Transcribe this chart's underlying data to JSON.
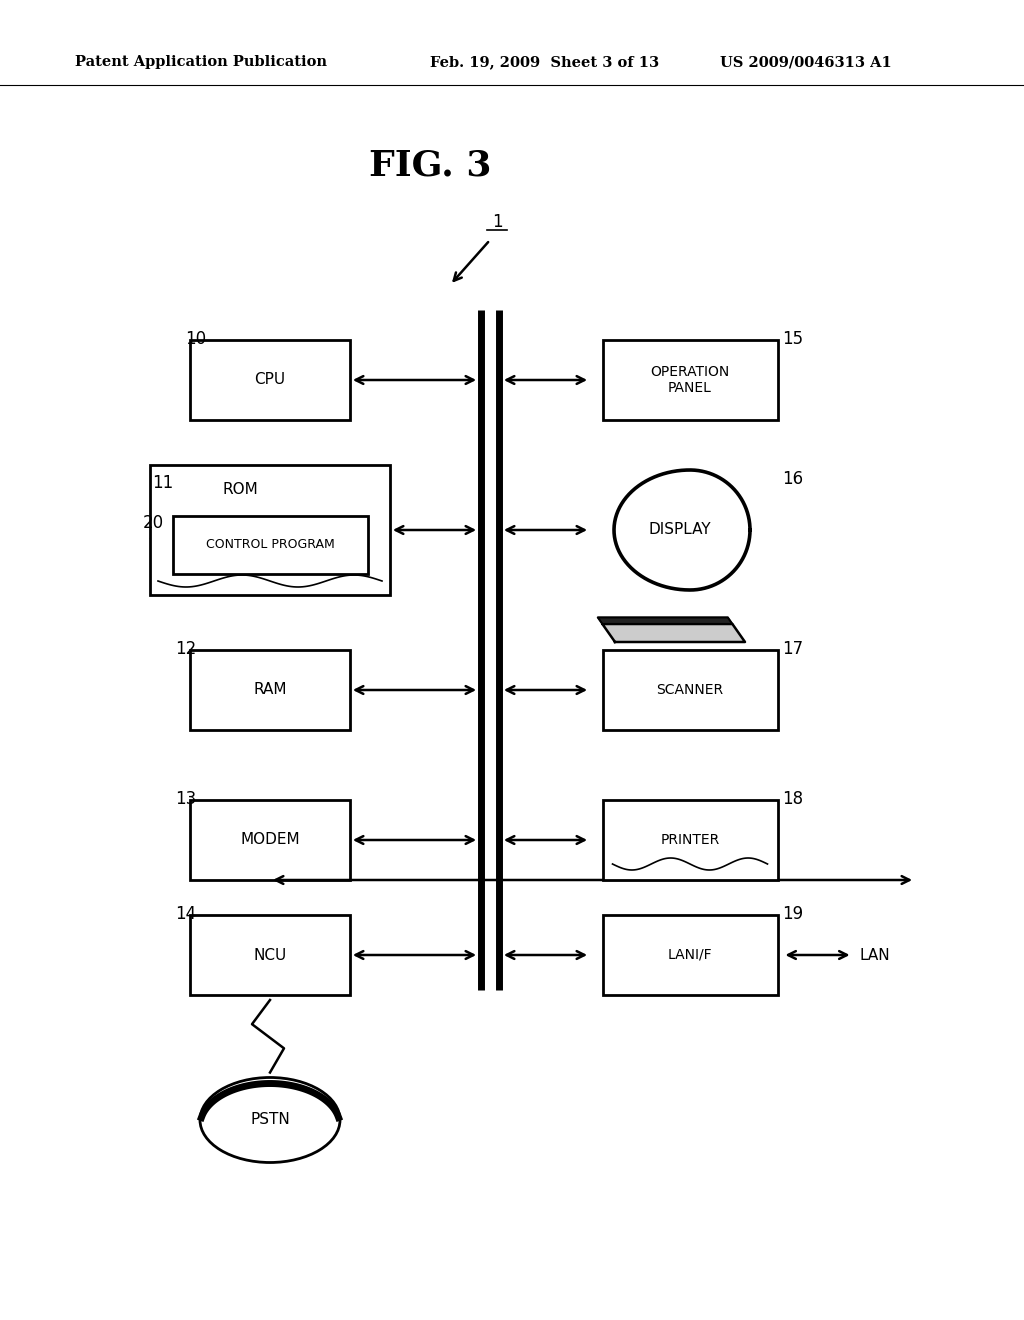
{
  "title": "FIG. 3",
  "header_left": "Patent Application Publication",
  "header_mid": "Feb. 19, 2009  Sheet 3 of 13",
  "header_right": "US 2009/0046313 A1",
  "bg_color": "#ffffff",
  "line_color": "#000000",
  "figsize": [
    10.24,
    13.2
  ],
  "dpi": 100
}
